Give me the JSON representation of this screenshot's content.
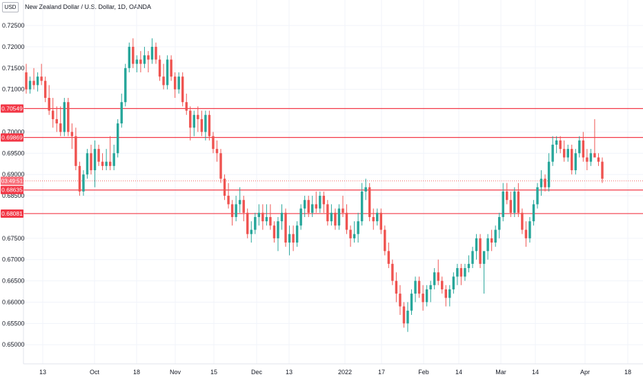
{
  "header": {
    "currency_label": "USD",
    "title": "New Zealand Dollar / U.S. Dollar, 1D, OANDA"
  },
  "colors": {
    "up": "#26a69a",
    "down": "#ef5350",
    "level_line": "#f23645",
    "grid": "#f0f3fa",
    "countdown_bg": "#f7525f"
  },
  "chart_data": {
    "type": "candlestick",
    "title": "New Zealand Dollar / U.S. Dollar, 1D, OANDA",
    "ylim": [
      0.6455,
      0.731
    ],
    "y_ticks": [
      "0.65000",
      "0.65500",
      "0.66000",
      "0.66500",
      "0.67000",
      "0.67500",
      "0.68500",
      "0.69000",
      "0.69500",
      "0.70000",
      "0.71000",
      "0.71500",
      "0.72000",
      "0.72500"
    ],
    "x_ticks": [
      "13",
      "Oct",
      "18",
      "Nov",
      "15",
      "Dec",
      "13",
      "2022",
      "17",
      "Feb",
      "14",
      "Mar",
      "14",
      "Apr",
      "18"
    ],
    "horizontal_levels": [
      {
        "label": "0.70549",
        "value": 0.70549
      },
      {
        "label": "0.69869",
        "value": 0.69869
      },
      {
        "label": "0.68635",
        "value": 0.68635
      },
      {
        "label": "0.68081",
        "value": 0.68081
      }
    ],
    "countdown_label": "03:49:51",
    "last_price": 0.6885,
    "grid": true,
    "series": [
      {
        "values": [
          [
            0.714,
            0.716,
            0.709,
            0.71
          ],
          [
            0.71,
            0.713,
            0.709,
            0.712
          ],
          [
            0.712,
            0.715,
            0.71,
            0.711
          ],
          [
            0.711,
            0.714,
            0.7095,
            0.713
          ],
          [
            0.713,
            0.716,
            0.711,
            0.712
          ],
          [
            0.712,
            0.713,
            0.707,
            0.708
          ],
          [
            0.708,
            0.711,
            0.704,
            0.705
          ],
          [
            0.705,
            0.708,
            0.701,
            0.703
          ],
          [
            0.703,
            0.706,
            0.7,
            0.702
          ],
          [
            0.702,
            0.706,
            0.699,
            0.7
          ],
          [
            0.7,
            0.708,
            0.699,
            0.707
          ],
          [
            0.707,
            0.708,
            0.699,
            0.7
          ],
          [
            0.7,
            0.702,
            0.696,
            0.699
          ],
          [
            0.699,
            0.701,
            0.691,
            0.692
          ],
          [
            0.692,
            0.693,
            0.685,
            0.686
          ],
          [
            0.686,
            0.691,
            0.685,
            0.69
          ],
          [
            0.69,
            0.696,
            0.689,
            0.695
          ],
          [
            0.695,
            0.697,
            0.69,
            0.691
          ],
          [
            0.691,
            0.698,
            0.687,
            0.696
          ],
          [
            0.696,
            0.697,
            0.692,
            0.693
          ],
          [
            0.693,
            0.695,
            0.691,
            0.692
          ],
          [
            0.692,
            0.696,
            0.691,
            0.693
          ],
          [
            0.693,
            0.699,
            0.691,
            0.692
          ],
          [
            0.692,
            0.697,
            0.691,
            0.695
          ],
          [
            0.695,
            0.703,
            0.694,
            0.702
          ],
          [
            0.702,
            0.709,
            0.701,
            0.707
          ],
          [
            0.707,
            0.716,
            0.706,
            0.715
          ],
          [
            0.715,
            0.721,
            0.714,
            0.72
          ],
          [
            0.72,
            0.722,
            0.715,
            0.716
          ],
          [
            0.716,
            0.718,
            0.714,
            0.717
          ],
          [
            0.717,
            0.719,
            0.714,
            0.716
          ],
          [
            0.716,
            0.72,
            0.715,
            0.718
          ],
          [
            0.718,
            0.719,
            0.714,
            0.717
          ],
          [
            0.717,
            0.722,
            0.716,
            0.72
          ],
          [
            0.72,
            0.721,
            0.716,
            0.717
          ],
          [
            0.717,
            0.718,
            0.712,
            0.713
          ],
          [
            0.713,
            0.716,
            0.71,
            0.711
          ],
          [
            0.711,
            0.718,
            0.71,
            0.717
          ],
          [
            0.717,
            0.718,
            0.712,
            0.713
          ],
          [
            0.713,
            0.714,
            0.708,
            0.71
          ],
          [
            0.71,
            0.714,
            0.709,
            0.713
          ],
          [
            0.713,
            0.714,
            0.706,
            0.707
          ],
          [
            0.707,
            0.709,
            0.704,
            0.705
          ],
          [
            0.705,
            0.706,
            0.698,
            0.701
          ],
          [
            0.701,
            0.705,
            0.699,
            0.704
          ],
          [
            0.704,
            0.706,
            0.7,
            0.703
          ],
          [
            0.703,
            0.705,
            0.699,
            0.7
          ],
          [
            0.7,
            0.705,
            0.698,
            0.704
          ],
          [
            0.704,
            0.705,
            0.698,
            0.699
          ],
          [
            0.699,
            0.7,
            0.695,
            0.696
          ],
          [
            0.696,
            0.698,
            0.693,
            0.695
          ],
          [
            0.695,
            0.696,
            0.688,
            0.689
          ],
          [
            0.689,
            0.69,
            0.684,
            0.685
          ],
          [
            0.685,
            0.688,
            0.682,
            0.683
          ],
          [
            0.683,
            0.684,
            0.678,
            0.68
          ],
          [
            0.68,
            0.685,
            0.679,
            0.683
          ],
          [
            0.683,
            0.687,
            0.681,
            0.684
          ],
          [
            0.684,
            0.685,
            0.679,
            0.681
          ],
          [
            0.681,
            0.682,
            0.675,
            0.676
          ],
          [
            0.676,
            0.679,
            0.674,
            0.677
          ],
          [
            0.677,
            0.681,
            0.676,
            0.68
          ],
          [
            0.68,
            0.683,
            0.678,
            0.681
          ],
          [
            0.681,
            0.683,
            0.677,
            0.679
          ],
          [
            0.679,
            0.683,
            0.678,
            0.68
          ],
          [
            0.68,
            0.683,
            0.677,
            0.678
          ],
          [
            0.678,
            0.679,
            0.674,
            0.675
          ],
          [
            0.675,
            0.68,
            0.672,
            0.679
          ],
          [
            0.679,
            0.683,
            0.677,
            0.681
          ],
          [
            0.681,
            0.682,
            0.673,
            0.674
          ],
          [
            0.674,
            0.678,
            0.671,
            0.676
          ],
          [
            0.676,
            0.678,
            0.672,
            0.674
          ],
          [
            0.674,
            0.679,
            0.673,
            0.678
          ],
          [
            0.678,
            0.683,
            0.677,
            0.682
          ],
          [
            0.682,
            0.685,
            0.68,
            0.684
          ],
          [
            0.684,
            0.685,
            0.68,
            0.681
          ],
          [
            0.681,
            0.685,
            0.68,
            0.683
          ],
          [
            0.683,
            0.686,
            0.681,
            0.682
          ],
          [
            0.682,
            0.686,
            0.681,
            0.685
          ],
          [
            0.685,
            0.686,
            0.681,
            0.683
          ],
          [
            0.683,
            0.684,
            0.678,
            0.679
          ],
          [
            0.679,
            0.683,
            0.678,
            0.681
          ],
          [
            0.681,
            0.682,
            0.677,
            0.678
          ],
          [
            0.678,
            0.683,
            0.677,
            0.682
          ],
          [
            0.682,
            0.685,
            0.68,
            0.681
          ],
          [
            0.681,
            0.683,
            0.676,
            0.677
          ],
          [
            0.677,
            0.678,
            0.673,
            0.675
          ],
          [
            0.675,
            0.679,
            0.674,
            0.676
          ],
          [
            0.676,
            0.681,
            0.674,
            0.679
          ],
          [
            0.679,
            0.688,
            0.678,
            0.686
          ],
          [
            0.686,
            0.689,
            0.684,
            0.687
          ],
          [
            0.687,
            0.688,
            0.679,
            0.68
          ],
          [
            0.68,
            0.682,
            0.677,
            0.679
          ],
          [
            0.679,
            0.682,
            0.678,
            0.681
          ],
          [
            0.681,
            0.682,
            0.676,
            0.677
          ],
          [
            0.677,
            0.678,
            0.671,
            0.672
          ],
          [
            0.672,
            0.674,
            0.668,
            0.669
          ],
          [
            0.669,
            0.67,
            0.664,
            0.665
          ],
          [
            0.665,
            0.667,
            0.66,
            0.662
          ],
          [
            0.662,
            0.664,
            0.657,
            0.659
          ],
          [
            0.659,
            0.66,
            0.654,
            0.655
          ],
          [
            0.655,
            0.66,
            0.653,
            0.658
          ],
          [
            0.658,
            0.663,
            0.657,
            0.662
          ],
          [
            0.662,
            0.666,
            0.66,
            0.665
          ],
          [
            0.665,
            0.666,
            0.661,
            0.662
          ],
          [
            0.662,
            0.664,
            0.658,
            0.66
          ],
          [
            0.66,
            0.664,
            0.659,
            0.663
          ],
          [
            0.663,
            0.665,
            0.66,
            0.664
          ],
          [
            0.664,
            0.668,
            0.663,
            0.667
          ],
          [
            0.667,
            0.67,
            0.664,
            0.665
          ],
          [
            0.665,
            0.666,
            0.662,
            0.663
          ],
          [
            0.663,
            0.664,
            0.659,
            0.661
          ],
          [
            0.661,
            0.664,
            0.659,
            0.663
          ],
          [
            0.663,
            0.667,
            0.662,
            0.666
          ],
          [
            0.666,
            0.669,
            0.664,
            0.668
          ],
          [
            0.668,
            0.669,
            0.664,
            0.666
          ],
          [
            0.666,
            0.669,
            0.665,
            0.668
          ],
          [
            0.668,
            0.671,
            0.667,
            0.669
          ],
          [
            0.669,
            0.673,
            0.668,
            0.672
          ],
          [
            0.672,
            0.676,
            0.67,
            0.675
          ],
          [
            0.675,
            0.676,
            0.668,
            0.669
          ],
          [
            0.669,
            0.67,
            0.662,
            0.672
          ],
          [
            0.672,
            0.676,
            0.67,
            0.675
          ],
          [
            0.675,
            0.677,
            0.672,
            0.674
          ],
          [
            0.674,
            0.678,
            0.673,
            0.677
          ],
          [
            0.677,
            0.681,
            0.675,
            0.68
          ],
          [
            0.68,
            0.688,
            0.679,
            0.686
          ],
          [
            0.686,
            0.688,
            0.683,
            0.684
          ],
          [
            0.684,
            0.686,
            0.68,
            0.681
          ],
          [
            0.681,
            0.687,
            0.68,
            0.686
          ],
          [
            0.686,
            0.688,
            0.68,
            0.681
          ],
          [
            0.681,
            0.682,
            0.676,
            0.677
          ],
          [
            0.677,
            0.679,
            0.673,
            0.675
          ],
          [
            0.675,
            0.68,
            0.674,
            0.679
          ],
          [
            0.679,
            0.684,
            0.678,
            0.683
          ],
          [
            0.683,
            0.688,
            0.682,
            0.687
          ],
          [
            0.687,
            0.691,
            0.685,
            0.689
          ],
          [
            0.689,
            0.69,
            0.686,
            0.687
          ],
          [
            0.687,
            0.695,
            0.686,
            0.693
          ],
          [
            0.693,
            0.699,
            0.692,
            0.697
          ],
          [
            0.697,
            0.699,
            0.695,
            0.698
          ],
          [
            0.698,
            0.699,
            0.695,
            0.696
          ],
          [
            0.696,
            0.698,
            0.693,
            0.694
          ],
          [
            0.694,
            0.697,
            0.693,
            0.696
          ],
          [
            0.696,
            0.697,
            0.69,
            0.691
          ],
          [
            0.691,
            0.696,
            0.69,
            0.695
          ],
          [
            0.695,
            0.699,
            0.694,
            0.698
          ],
          [
            0.698,
            0.7,
            0.693,
            0.694
          ],
          [
            0.694,
            0.696,
            0.691,
            0.693
          ],
          [
            0.693,
            0.696,
            0.692,
            0.695
          ],
          [
            0.695,
            0.703,
            0.694,
            0.694
          ],
          [
            0.694,
            0.695,
            0.692,
            0.693
          ],
          [
            0.693,
            0.694,
            0.688,
            0.689
          ]
        ]
      }
    ]
  }
}
